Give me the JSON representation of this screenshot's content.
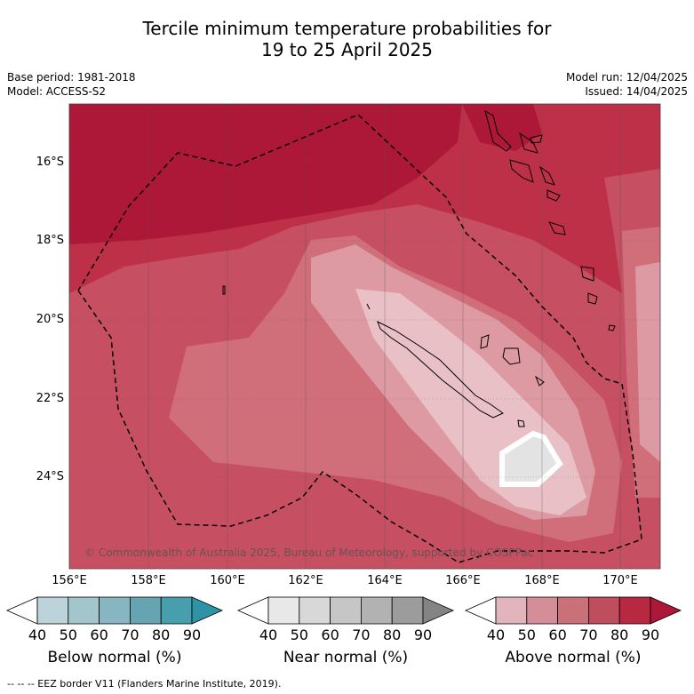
{
  "title_line1": "Tercile minimum temperature probabilities for",
  "title_line2": "19 to 25 April 2025",
  "base_period": "Base period: 1981-2018",
  "model": "Model: ACCESS-S2",
  "model_run": "Model run: 12/04/2025",
  "issued": "Issued: 14/04/2025",
  "credit": "© Commonwealth of Australia 2025, Bureau of Meteorology, supported by COSPPac",
  "lat_ticks": [
    "16°S",
    "18°S",
    "20°S",
    "22°S",
    "24°S"
  ],
  "lon_ticks": [
    "156°E",
    "158°E",
    "160°E",
    "162°E",
    "164°E",
    "166°E",
    "168°E",
    "170°E"
  ],
  "colorbars": [
    {
      "label": "Below normal (%)",
      "ticks": [
        "40",
        "50",
        "60",
        "70",
        "80",
        "90"
      ],
      "colors": [
        "#ffffff",
        "#bdd3da",
        "#a3c5cc",
        "#87b6c0",
        "#66a4b2",
        "#479fae",
        "#2d93a5"
      ]
    },
    {
      "label": "Near normal (%)",
      "ticks": [
        "40",
        "50",
        "60",
        "70",
        "80",
        "90"
      ],
      "colors": [
        "#ffffff",
        "#e8e8e8",
        "#d8d8d8",
        "#c6c6c6",
        "#b2b2b2",
        "#9c9c9c",
        "#848484"
      ]
    },
    {
      "label": "Above normal (%)",
      "ticks": [
        "40",
        "50",
        "60",
        "70",
        "80",
        "90"
      ],
      "colors": [
        "#ffffff",
        "#e2b5bc",
        "#d48e98",
        "#c97078",
        "#bf4d5e",
        "#b82841",
        "#ad1738"
      ]
    }
  ],
  "footer": "-- -- -- EEZ border V11 (Flanders Marine Institute, 2019).",
  "fill_colors": {
    "p90": "#ad1738",
    "p80": "#bd3048",
    "p70": "#c65062",
    "p60": "#d06e7a",
    "p50": "#dd9aa3",
    "p40": "#e8c0c5",
    "near": "#e3e3e3"
  }
}
